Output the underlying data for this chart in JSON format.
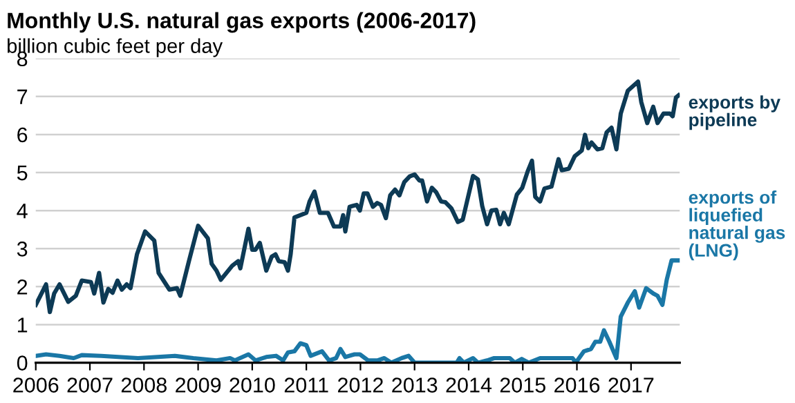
{
  "chart_data": {
    "type": "line",
    "title": "Monthly U.S. natural gas exports (2006-2017)",
    "subtitle": "billion cubic feet per day",
    "xlim": [
      2006,
      2017.9
    ],
    "xticks": [
      2006,
      2007,
      2008,
      2009,
      2010,
      2011,
      2012,
      2013,
      2014,
      2015,
      2016,
      2017
    ],
    "ylim": [
      0,
      8
    ],
    "yticks": [
      0,
      1,
      2,
      3,
      4,
      5,
      6,
      7,
      8
    ],
    "grid": "y",
    "legend": false,
    "marker": "none",
    "line_style": "solid",
    "series": [
      {
        "name": "exports by\npipeline",
        "color": "#0d3a55",
        "x": [
          2006.0,
          2006.19,
          2006.26,
          2006.34,
          2006.44,
          2006.6,
          2006.74,
          2006.85,
          2007.02,
          2007.08,
          2007.17,
          2007.25,
          2007.34,
          2007.42,
          2007.51,
          2007.59,
          2007.68,
          2007.75,
          2007.87,
          2008.02,
          2008.19,
          2008.27,
          2008.47,
          2008.61,
          2008.67,
          2008.83,
          2009.0,
          2009.18,
          2009.25,
          2009.34,
          2009.42,
          2009.63,
          2009.74,
          2009.78,
          2009.93,
          2010.0,
          2010.06,
          2010.14,
          2010.26,
          2010.36,
          2010.43,
          2010.49,
          2010.6,
          2010.66,
          2010.71,
          2010.78,
          2011.0,
          2011.06,
          2011.15,
          2011.25,
          2011.4,
          2011.51,
          2011.63,
          2011.68,
          2011.72,
          2011.8,
          2011.93,
          2011.99,
          2012.06,
          2012.13,
          2012.23,
          2012.31,
          2012.38,
          2012.47,
          2012.55,
          2012.64,
          2012.72,
          2012.81,
          2012.91,
          2013.0,
          2013.09,
          2013.14,
          2013.23,
          2013.32,
          2013.4,
          2013.49,
          2013.57,
          2013.68,
          2013.8,
          2013.89,
          2014.08,
          2014.17,
          2014.25,
          2014.34,
          2014.42,
          2014.51,
          2014.58,
          2014.65,
          2014.74,
          2014.89,
          2014.99,
          2015.09,
          2015.17,
          2015.23,
          2015.32,
          2015.4,
          2015.53,
          2015.66,
          2015.72,
          2015.85,
          2015.96,
          2016.09,
          2016.15,
          2016.21,
          2016.27,
          2016.38,
          2016.47,
          2016.55,
          2016.64,
          2016.73,
          2016.81,
          2016.94,
          2017.13,
          2017.19,
          2017.3,
          2017.41,
          2017.49,
          2017.6,
          2017.72,
          2017.77,
          2017.83,
          2017.88
        ],
        "values": [
          1.52,
          2.06,
          1.33,
          1.82,
          2.06,
          1.6,
          1.76,
          2.16,
          2.12,
          1.82,
          2.36,
          1.58,
          1.94,
          1.84,
          2.16,
          1.92,
          2.06,
          1.96,
          2.85,
          3.45,
          3.21,
          2.36,
          1.92,
          1.96,
          1.76,
          2.67,
          3.6,
          3.27,
          2.6,
          2.42,
          2.18,
          2.55,
          2.67,
          2.48,
          3.52,
          2.97,
          2.97,
          3.15,
          2.42,
          2.79,
          2.85,
          2.67,
          2.64,
          2.42,
          2.85,
          3.82,
          3.94,
          4.24,
          4.5,
          3.94,
          3.94,
          3.58,
          3.58,
          3.88,
          3.45,
          4.1,
          4.15,
          4.0,
          4.45,
          4.45,
          4.1,
          4.2,
          4.15,
          3.8,
          4.4,
          4.55,
          4.4,
          4.75,
          4.9,
          4.95,
          4.79,
          4.79,
          4.24,
          4.6,
          4.48,
          4.24,
          4.22,
          4.06,
          3.7,
          3.76,
          4.91,
          4.82,
          4.12,
          3.64,
          4.0,
          4.02,
          3.64,
          3.94,
          3.64,
          4.42,
          4.6,
          5.03,
          5.31,
          4.36,
          4.24,
          4.58,
          4.63,
          5.35,
          5.06,
          5.1,
          5.43,
          5.58,
          5.99,
          5.64,
          5.79,
          5.61,
          5.64,
          6.06,
          6.18,
          5.61,
          6.55,
          7.15,
          7.39,
          6.85,
          6.3,
          6.73,
          6.3,
          6.55,
          6.55,
          6.48,
          6.97,
          7.03
        ]
      },
      {
        "name": "exports of\nliquefied\nnatural gas\n(LNG)",
        "color": "#1a77a6",
        "x": [
          2006.0,
          2006.19,
          2006.44,
          2006.7,
          2006.85,
          2007.21,
          2007.89,
          2008.57,
          2008.91,
          2009.34,
          2009.59,
          2009.68,
          2009.93,
          2010.06,
          2010.26,
          2010.44,
          2010.57,
          2010.66,
          2010.78,
          2010.89,
          2011.0,
          2011.08,
          2011.29,
          2011.42,
          2011.55,
          2011.63,
          2011.72,
          2011.89,
          2011.99,
          2012.14,
          2012.31,
          2012.44,
          2012.57,
          2012.76,
          2012.89,
          2013.0,
          2013.78,
          2013.83,
          2013.91,
          2014.08,
          2014.17,
          2014.34,
          2014.47,
          2014.76,
          2014.85,
          2014.98,
          2015.11,
          2015.32,
          2015.92,
          2015.98,
          2016.13,
          2016.26,
          2016.34,
          2016.43,
          2016.5,
          2016.6,
          2016.73,
          2016.81,
          2016.94,
          2017.07,
          2017.15,
          2017.28,
          2017.41,
          2017.49,
          2017.58,
          2017.66,
          2017.75,
          2017.88
        ],
        "values": [
          0.18,
          0.22,
          0.18,
          0.12,
          0.2,
          0.18,
          0.12,
          0.18,
          0.12,
          0.06,
          0.12,
          0.06,
          0.22,
          0.06,
          0.15,
          0.18,
          0.06,
          0.27,
          0.3,
          0.51,
          0.46,
          0.18,
          0.3,
          0.06,
          0.12,
          0.36,
          0.15,
          0.22,
          0.22,
          0.06,
          0.06,
          0.12,
          0,
          0.12,
          0.18,
          0,
          0,
          0.12,
          0,
          0.12,
          0,
          0.06,
          0.12,
          0.12,
          0,
          0.1,
          0,
          0.12,
          0.12,
          0,
          0.3,
          0.36,
          0.55,
          0.55,
          0.85,
          0.55,
          0.12,
          1.21,
          1.58,
          1.88,
          1.45,
          1.96,
          1.82,
          1.76,
          1.52,
          2.18,
          2.69,
          2.69
        ]
      }
    ]
  }
}
